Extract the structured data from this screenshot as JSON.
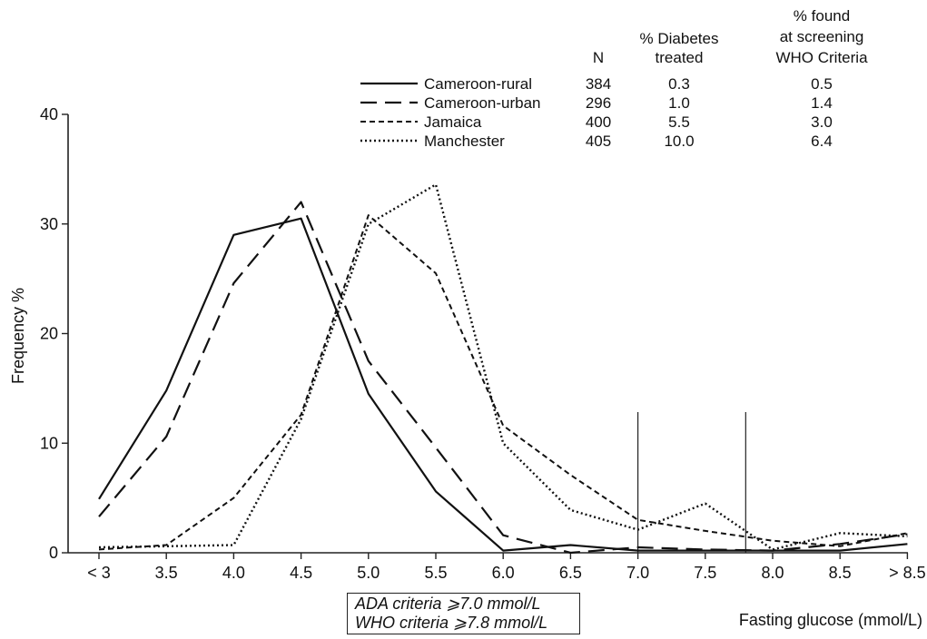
{
  "chart_data": {
    "type": "line",
    "title": "",
    "xlabel": "Fasting glucose (mmol/L)",
    "ylabel": "Frequency %",
    "categories": [
      "< 3",
      "3.5",
      "4.0",
      "4.5",
      "5.0",
      "5.5",
      "6.0",
      "6.5",
      "7.0",
      "7.5",
      "8.0",
      "8.5",
      "> 8.5"
    ],
    "ylim": [
      0,
      40
    ],
    "yticks": [
      0,
      10,
      20,
      30,
      40
    ],
    "grid": false,
    "legend_position": "top-right",
    "legend_headers": {
      "n": "N",
      "treated": [
        "% Diabetes",
        "treated"
      ],
      "screening": [
        "% found",
        "at screening",
        "WHO Criteria"
      ]
    },
    "series": [
      {
        "name": "Cameroon-rural",
        "n": "384",
        "treated": "0.3",
        "screening": "0.5",
        "style": "solid",
        "values": [
          4.9,
          14.8,
          29.0,
          30.5,
          14.5,
          5.6,
          0.2,
          0.7,
          0.2,
          0.2,
          0.2,
          0.2,
          0.8
        ]
      },
      {
        "name": "Cameroon-urban",
        "n": "296",
        "treated": "1.0",
        "screening": "1.4",
        "style": "long-dash",
        "values": [
          3.3,
          10.6,
          24.6,
          32.0,
          17.5,
          9.6,
          1.6,
          0.0,
          0.5,
          0.3,
          0.2,
          0.8,
          1.7
        ]
      },
      {
        "name": "Jamaica",
        "n": "400",
        "treated": "5.5",
        "screening": "3.0",
        "style": "short-dash",
        "values": [
          0.3,
          0.7,
          5.0,
          12.6,
          30.8,
          25.5,
          11.6,
          7.1,
          3.0,
          2.0,
          1.1,
          0.6,
          1.8
        ]
      },
      {
        "name": "Manchester",
        "n": "405",
        "treated": "10.0",
        "screening": "6.4",
        "style": "dotted",
        "values": [
          0.5,
          0.6,
          0.7,
          12.2,
          30.0,
          33.6,
          10.0,
          3.9,
          2.1,
          4.5,
          0.3,
          1.8,
          1.5
        ]
      }
    ],
    "reference_lines": [
      {
        "x": 7.0,
        "label": "ADA criteria  ⩾7.0 mmol/L"
      },
      {
        "x": 7.8,
        "label": "WHO criteria  ⩾7.8 mmol/L"
      }
    ]
  }
}
